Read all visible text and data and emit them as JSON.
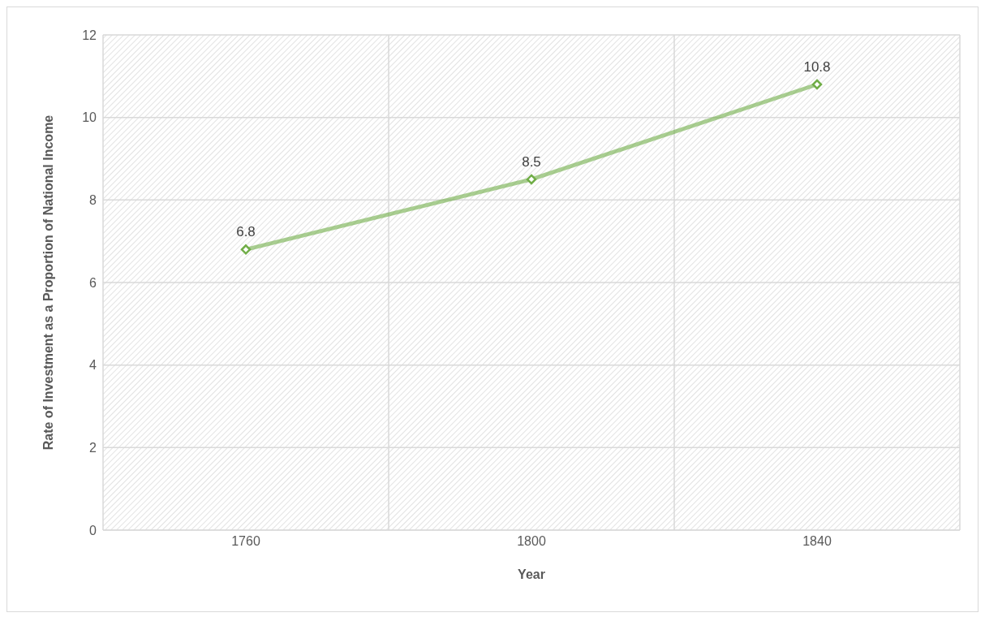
{
  "chart_data": {
    "type": "line",
    "xlabel": "Year",
    "ylabel": "Rate of Investment as a Proportion of National Income",
    "categories": [
      "1760",
      "1800",
      "1840"
    ],
    "series": [
      {
        "color": "#70ad47",
        "values": [
          6.8,
          8.5,
          10.8
        ]
      }
    ],
    "ylim": [
      0,
      12
    ],
    "yticks": [
      0,
      2,
      4,
      6,
      8,
      10,
      12
    ],
    "grid": true,
    "marker": "diamond",
    "line_style": "solid",
    "data_labels": true
  }
}
